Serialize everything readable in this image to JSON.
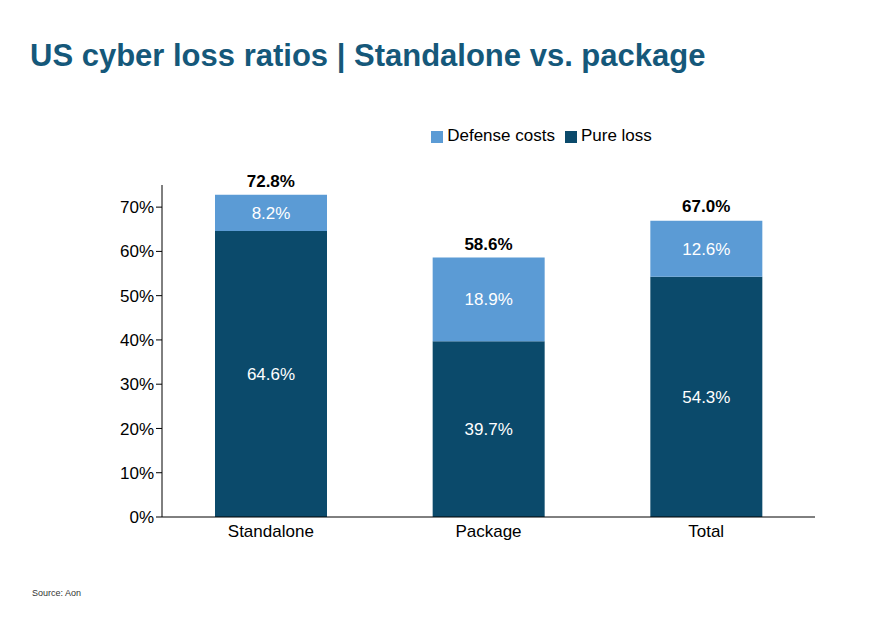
{
  "chart_data": {
    "type": "bar",
    "title": "US cyber loss ratios | Standalone vs. package",
    "source": "Source: Aon",
    "categories": [
      "Standalone",
      "Package",
      "Total"
    ],
    "stacked": true,
    "data_labels": true,
    "legend": "top",
    "grid": false,
    "ylim": [
      0,
      75
    ],
    "yticks": [
      {
        "value": 0,
        "label": "0%"
      },
      {
        "value": 10,
        "label": "10%"
      },
      {
        "value": 20,
        "label": "20%"
      },
      {
        "value": 30,
        "label": "30%"
      },
      {
        "value": 40,
        "label": "40%"
      },
      {
        "value": 50,
        "label": "50%"
      },
      {
        "value": 60,
        "label": "60%"
      },
      {
        "value": 70,
        "label": "70%"
      }
    ],
    "series": [
      {
        "name": "Pure loss",
        "color": "#0b4a6b",
        "values": [
          64.6,
          39.7,
          54.3
        ],
        "value_labels": [
          "64.6%",
          "39.7%",
          "54.3%"
        ]
      },
      {
        "name": "Defense costs",
        "color": "#5b9bd5",
        "values": [
          8.2,
          18.9,
          12.6
        ],
        "value_labels": [
          "8.2%",
          "18.9%",
          "12.6%"
        ]
      }
    ],
    "totals": [
      72.8,
      58.6,
      67.0
    ],
    "total_labels": [
      "72.8%",
      "58.6%",
      "67.0%"
    ]
  }
}
